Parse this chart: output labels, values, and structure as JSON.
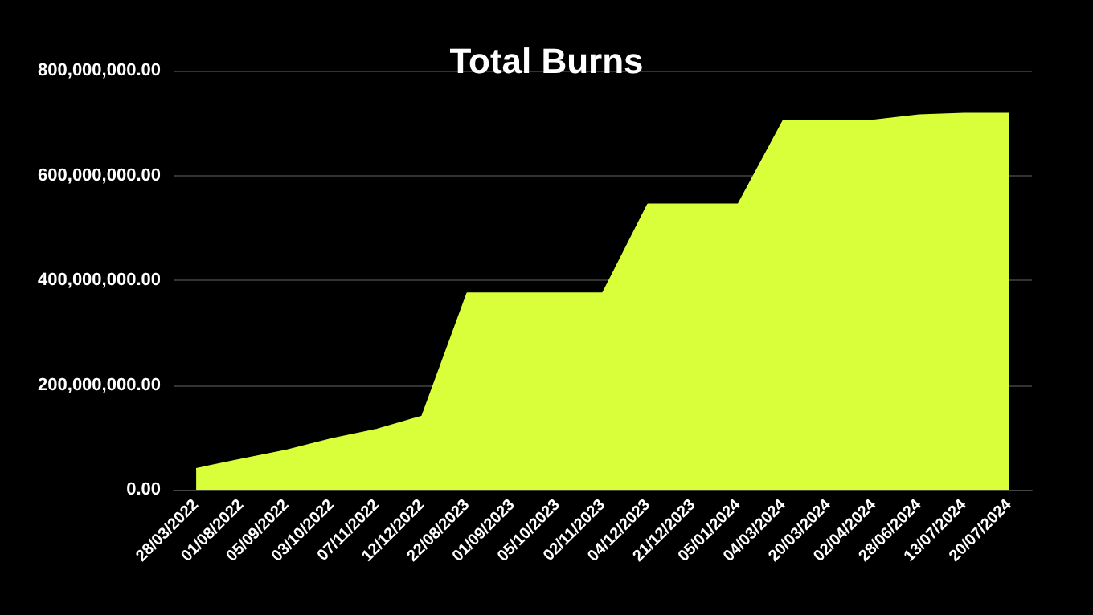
{
  "chart_data": {
    "type": "area",
    "title": "Total Burns",
    "categories": [
      "28/03/2022",
      "01/08/2022",
      "05/09/2022",
      "03/10/2022",
      "07/11/2022",
      "12/12/2022",
      "22/08/2023",
      "01/09/2023",
      "05/10/2023",
      "02/11/2023",
      "04/12/2023",
      "21/12/2023",
      "05/01/2024",
      "04/03/2024",
      "20/03/2024",
      "02/04/2024",
      "28/06/2024",
      "13/07/2024",
      "20/07/2024"
    ],
    "series": [
      {
        "color": "#d9ff3b",
        "values": [
          40000000,
          58000000,
          75000000,
          97000000,
          115000000,
          140000000,
          375000000,
          375000000,
          375000000,
          375000000,
          545000000,
          545000000,
          545000000,
          705000000,
          705000000,
          705000000,
          715000000,
          718000000,
          718000000
        ]
      }
    ],
    "ylim": [
      0,
      800000000
    ],
    "yticks": [
      {
        "value": 0,
        "label": "0.00"
      },
      {
        "value": 200000000,
        "label": "200,000,000.00"
      },
      {
        "value": 400000000,
        "label": "400,000,000.00"
      },
      {
        "value": 600000000,
        "label": "600,000,000.00"
      },
      {
        "value": 800000000,
        "label": "800,000,000.00"
      }
    ],
    "grid": "y",
    "marker": "none"
  }
}
